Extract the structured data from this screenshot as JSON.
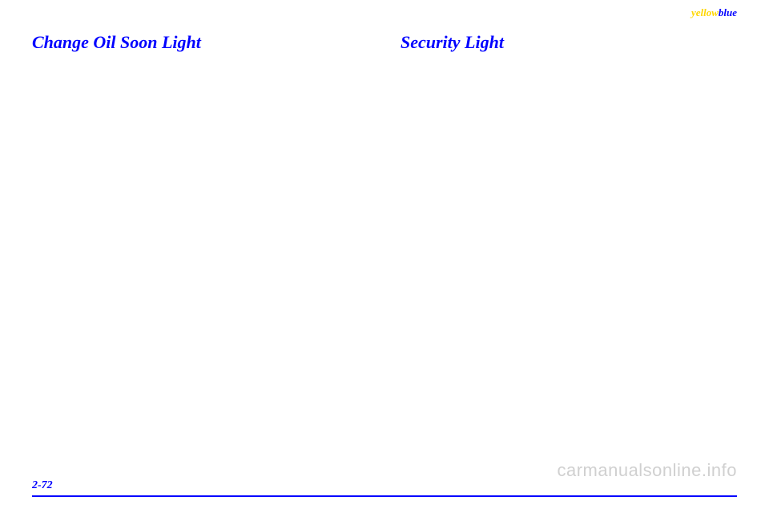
{
  "header": {
    "brand_yellow": "yellow",
    "brand_blue": "blue"
  },
  "columns": {
    "left": {
      "heading": "Change Oil Soon Light"
    },
    "right": {
      "heading": "Security Light"
    }
  },
  "footer": {
    "page_number": "2-72"
  },
  "watermark": "carmanualsonline.info",
  "colors": {
    "heading_color": "#0000ff",
    "page_number_color": "#0000ff",
    "footer_line_color": "#0000ff",
    "brand_yellow": "#ffd700",
    "brand_blue": "#0000ff",
    "watermark_color": "#d0d0d0",
    "background": "#ffffff"
  },
  "typography": {
    "heading_fontsize": 22,
    "page_number_fontsize": 14,
    "brand_fontsize": 13,
    "watermark_fontsize": 22
  }
}
